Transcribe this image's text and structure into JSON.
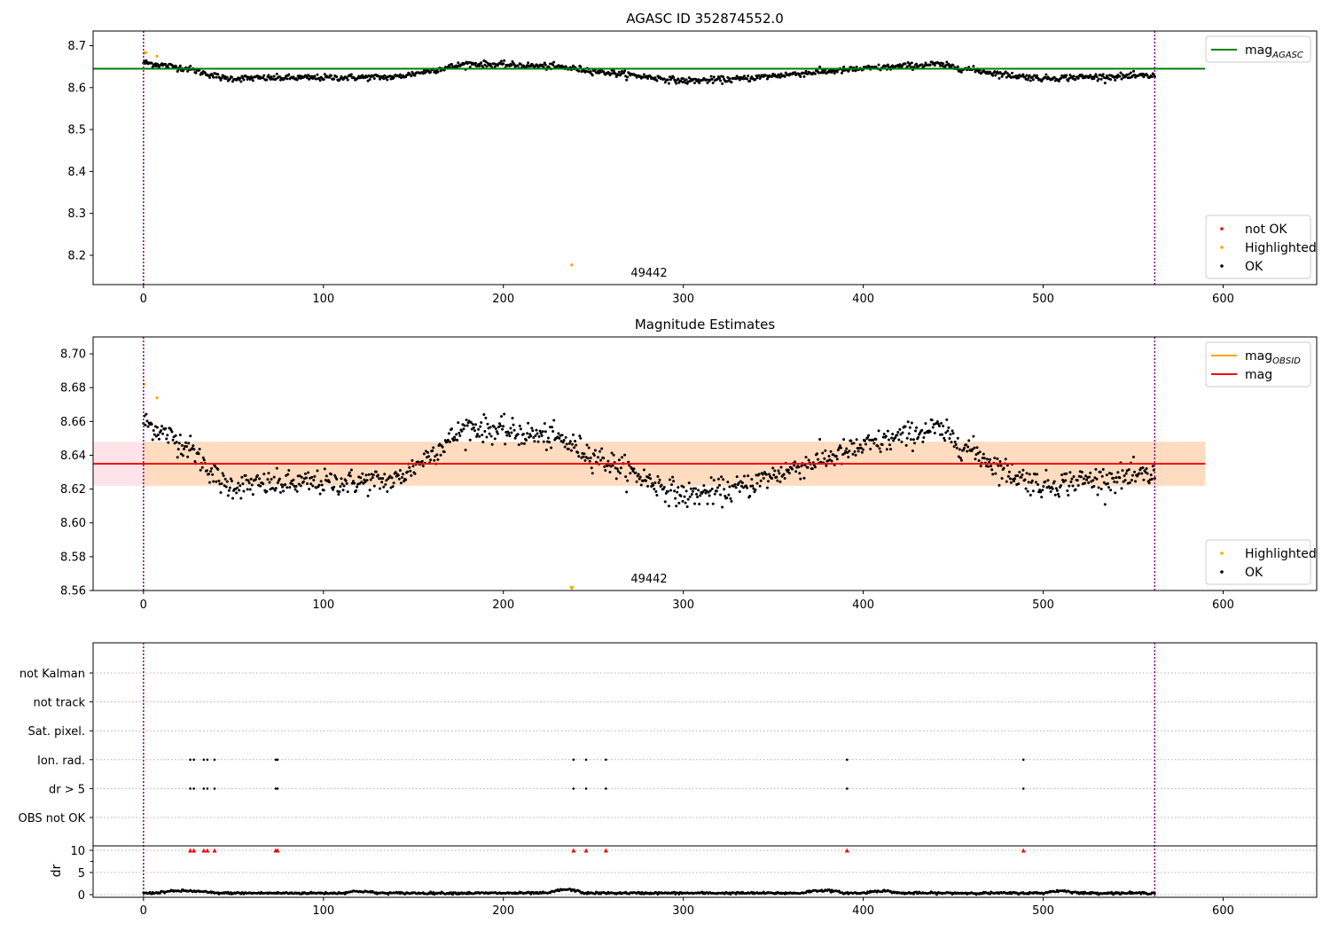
{
  "figure": {
    "observation_label": "49442",
    "colors": {
      "ok": "#000000",
      "not_ok": "#ff0000",
      "highlighted": "#ffa500",
      "mag_agasc": "#008000",
      "mag_obsid": "#ffa500",
      "mag": "#ff0000",
      "band_outer": "#ffc0cb",
      "band_inner": "#ffdab9",
      "obs_boundary": "#800080",
      "flag_grid": "#b0b0b0"
    }
  },
  "chart_data": [
    {
      "type": "scatter",
      "title": "AGASC ID 352874552.0",
      "xlim": [
        -28,
        652
      ],
      "ylim": [
        8.13,
        8.735
      ],
      "xticks": [
        0,
        100,
        200,
        300,
        400,
        500,
        600
      ],
      "yticks": [
        8.2,
        8.3,
        8.4,
        8.5,
        8.6,
        8.7
      ],
      "y_decimals": 1,
      "series_model": {
        "name": "OK",
        "x_range": [
          0,
          562
        ],
        "n_points": 1100,
        "baseline": 8.633,
        "segments": [
          {
            "x": [
              0,
              25
            ],
            "y": [
              8.66,
              8.645
            ]
          },
          {
            "x": [
              25,
              45
            ],
            "y": [
              8.645,
              8.622
            ]
          },
          {
            "x": [
              45,
              140
            ],
            "y": [
              8.622,
              8.625
            ]
          },
          {
            "x": [
              140,
              180
            ],
            "y": [
              8.625,
              8.657
            ]
          },
          {
            "x": [
              180,
              230
            ],
            "y": [
              8.657,
              8.65
            ]
          },
          {
            "x": [
              230,
              260
            ],
            "y": [
              8.65,
              8.635
            ]
          },
          {
            "x": [
              260,
              300
            ],
            "y": [
              8.635,
              8.616
            ]
          },
          {
            "x": [
              300,
              330
            ],
            "y": [
              8.616,
              8.62
            ]
          },
          {
            "x": [
              330,
              360
            ],
            "y": [
              8.62,
              8.632
            ]
          },
          {
            "x": [
              360,
              400
            ],
            "y": [
              8.632,
              8.645
            ]
          },
          {
            "x": [
              400,
              440
            ],
            "y": [
              8.645,
              8.656
            ]
          },
          {
            "x": [
              440,
              480
            ],
            "y": [
              8.656,
              8.63
            ]
          },
          {
            "x": [
              480,
              500
            ],
            "y": [
              8.63,
              8.622
            ]
          },
          {
            "x": [
              500,
              520
            ],
            "y": [
              8.622,
              8.625
            ]
          },
          {
            "x": [
              520,
              562
            ],
            "y": [
              8.625,
              8.628
            ]
          }
        ],
        "scatter": 0.005
      },
      "highlighted": [
        [
          0.3,
          8.682
        ],
        [
          1.2,
          8.684
        ],
        [
          7.5,
          8.675
        ],
        [
          238,
          8.177
        ]
      ],
      "not_ok": [],
      "hlines": [
        {
          "name": "mag_AGASC",
          "y": 8.645,
          "x": [
            -28,
            590
          ]
        }
      ],
      "vlines": [
        0,
        562
      ],
      "legends": [
        {
          "position": "top-right",
          "entries": [
            {
              "kind": "line",
              "name": "mag",
              "sub": "AGASC"
            }
          ]
        },
        {
          "position": "bottom-right",
          "entries": [
            {
              "kind": "dot",
              "name": "not OK",
              "color": "#ff0000"
            },
            {
              "kind": "dot",
              "name": "Highlighted",
              "color": "#ffa500"
            },
            {
              "kind": "dot",
              "name": "OK",
              "color": "#000000"
            }
          ]
        }
      ]
    },
    {
      "type": "scatter",
      "title": "Magnitude Estimates",
      "xlim": [
        -28,
        652
      ],
      "ylim": [
        8.56,
        8.71
      ],
      "xticks": [
        0,
        100,
        200,
        300,
        400,
        500,
        600
      ],
      "yticks": [
        8.56,
        8.58,
        8.6,
        8.62,
        8.64,
        8.66,
        8.68,
        8.7
      ],
      "y_decimals": 2,
      "series_model": "same_as_panel_1",
      "highlighted": [
        [
          0.3,
          8.682
        ],
        [
          7.5,
          8.674
        ]
      ],
      "offscale_markers": [
        {
          "x": 238,
          "y": 8.561
        }
      ],
      "band": {
        "y0": 8.622,
        "y1": 8.648,
        "x_outer": [
          -28,
          590
        ],
        "x_inner": [
          0,
          590
        ]
      },
      "hlines": [
        {
          "name": "mag",
          "y": 8.635,
          "x": [
            -28,
            590
          ]
        }
      ],
      "vlines": [
        0,
        562
      ],
      "legends": [
        {
          "position": "top-right",
          "entries": [
            {
              "kind": "line",
              "name": "mag",
              "sub": "OBSID",
              "color": "#ffa500"
            },
            {
              "kind": "line",
              "name": "mag",
              "color": "#ff0000"
            }
          ]
        },
        {
          "position": "bottom-right",
          "entries": [
            {
              "kind": "dot",
              "name": "Highlighted",
              "color": "#ffa500"
            },
            {
              "kind": "dot",
              "name": "OK",
              "color": "#000000"
            }
          ]
        }
      ]
    },
    {
      "type": "scatter",
      "title": "",
      "xlim": [
        -28,
        652
      ],
      "flag_rows": [
        "not Kalman",
        "not track",
        "Sat. pixel.",
        "Ion. rad.",
        "dr > 5",
        "OBS not OK"
      ],
      "flag_points": {
        "Ion. rad.": [
          26,
          28,
          33.5,
          35.5,
          39.5,
          73.5,
          74.5,
          239,
          246,
          257,
          391,
          489
        ],
        "dr > 5": [
          26,
          28,
          33.5,
          35.5,
          39.5,
          73.5,
          74.5,
          239,
          246,
          257,
          391,
          489
        ]
      },
      "dr": {
        "ylabel": "dr",
        "ylim": [
          -0.6,
          11
        ],
        "yticks": [
          0,
          5,
          10
        ],
        "clip_value": 10,
        "clipped_x": [
          26,
          28,
          33.5,
          35.5,
          39.5,
          73.5,
          74.5,
          239,
          246,
          257,
          391,
          489
        ],
        "bumps": [
          {
            "x": [
              5,
              40
            ],
            "amp": 0.5
          },
          {
            "x": [
              110,
              130
            ],
            "amp": 0.4
          },
          {
            "x": [
              225,
              245
            ],
            "amp": 0.8
          },
          {
            "x": [
              365,
              390
            ],
            "amp": 0.6
          },
          {
            "x": [
              400,
              420
            ],
            "amp": 0.5
          },
          {
            "x": [
              500,
              520
            ],
            "amp": 0.5
          }
        ],
        "base": 0.35
      },
      "xticks": [
        0,
        100,
        200,
        300,
        400,
        500,
        600
      ],
      "vlines": [
        0,
        562
      ]
    }
  ]
}
